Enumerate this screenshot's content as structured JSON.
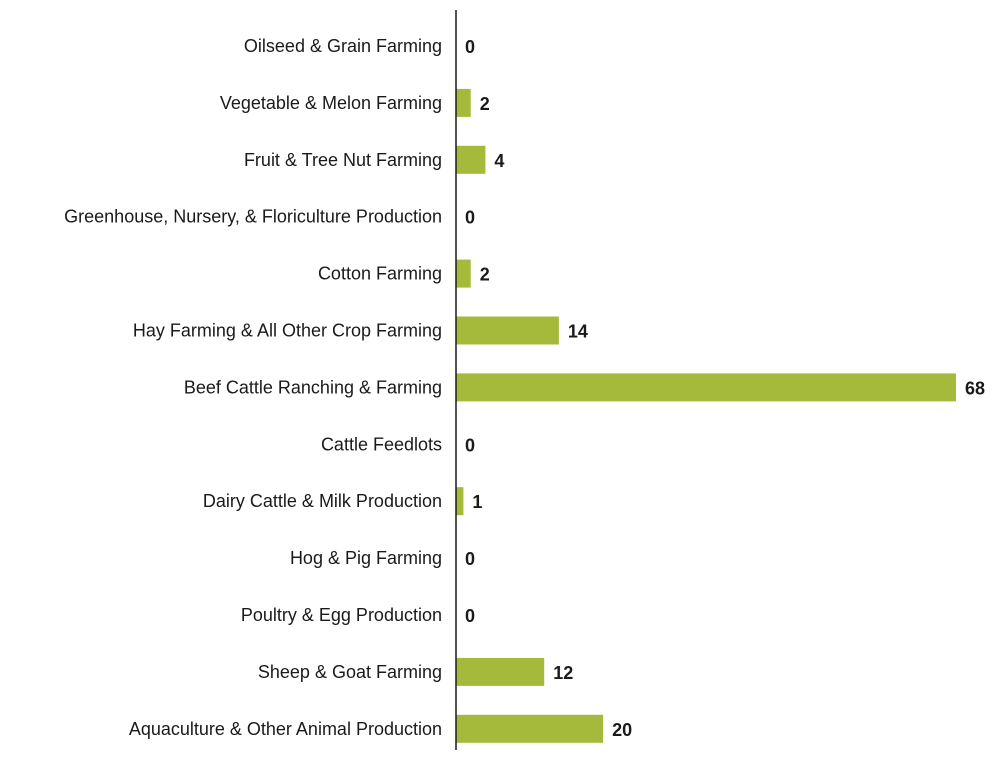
{
  "chart_data": {
    "type": "bar",
    "orientation": "horizontal",
    "categories": [
      "Oilseed & Grain Farming",
      "Vegetable & Melon Farming",
      "Fruit & Tree Nut Farming",
      "Greenhouse, Nursery, & Floriculture Production",
      "Cotton Farming",
      "Hay Farming & All Other Crop Farming",
      "Beef Cattle Ranching & Farming",
      "Cattle Feedlots",
      "Dairy Cattle & Milk Production",
      "Hog & Pig Farming",
      "Poultry & Egg Production",
      "Sheep & Goat Farming",
      "Aquaculture & Other Animal Production"
    ],
    "values": [
      0,
      2,
      4,
      0,
      2,
      14,
      68,
      0,
      1,
      0,
      0,
      12,
      20
    ],
    "value_labels": [
      "0",
      "2",
      "4",
      "0",
      "2",
      "14",
      "68",
      "0",
      "1",
      "0",
      "0",
      "12",
      "20"
    ],
    "xlim": [
      0,
      68
    ],
    "grid": false,
    "legend": "none",
    "colors": {
      "bar": "#a5b93a",
      "axis": "#1a1a1a",
      "text": "#1a1a1a"
    }
  }
}
